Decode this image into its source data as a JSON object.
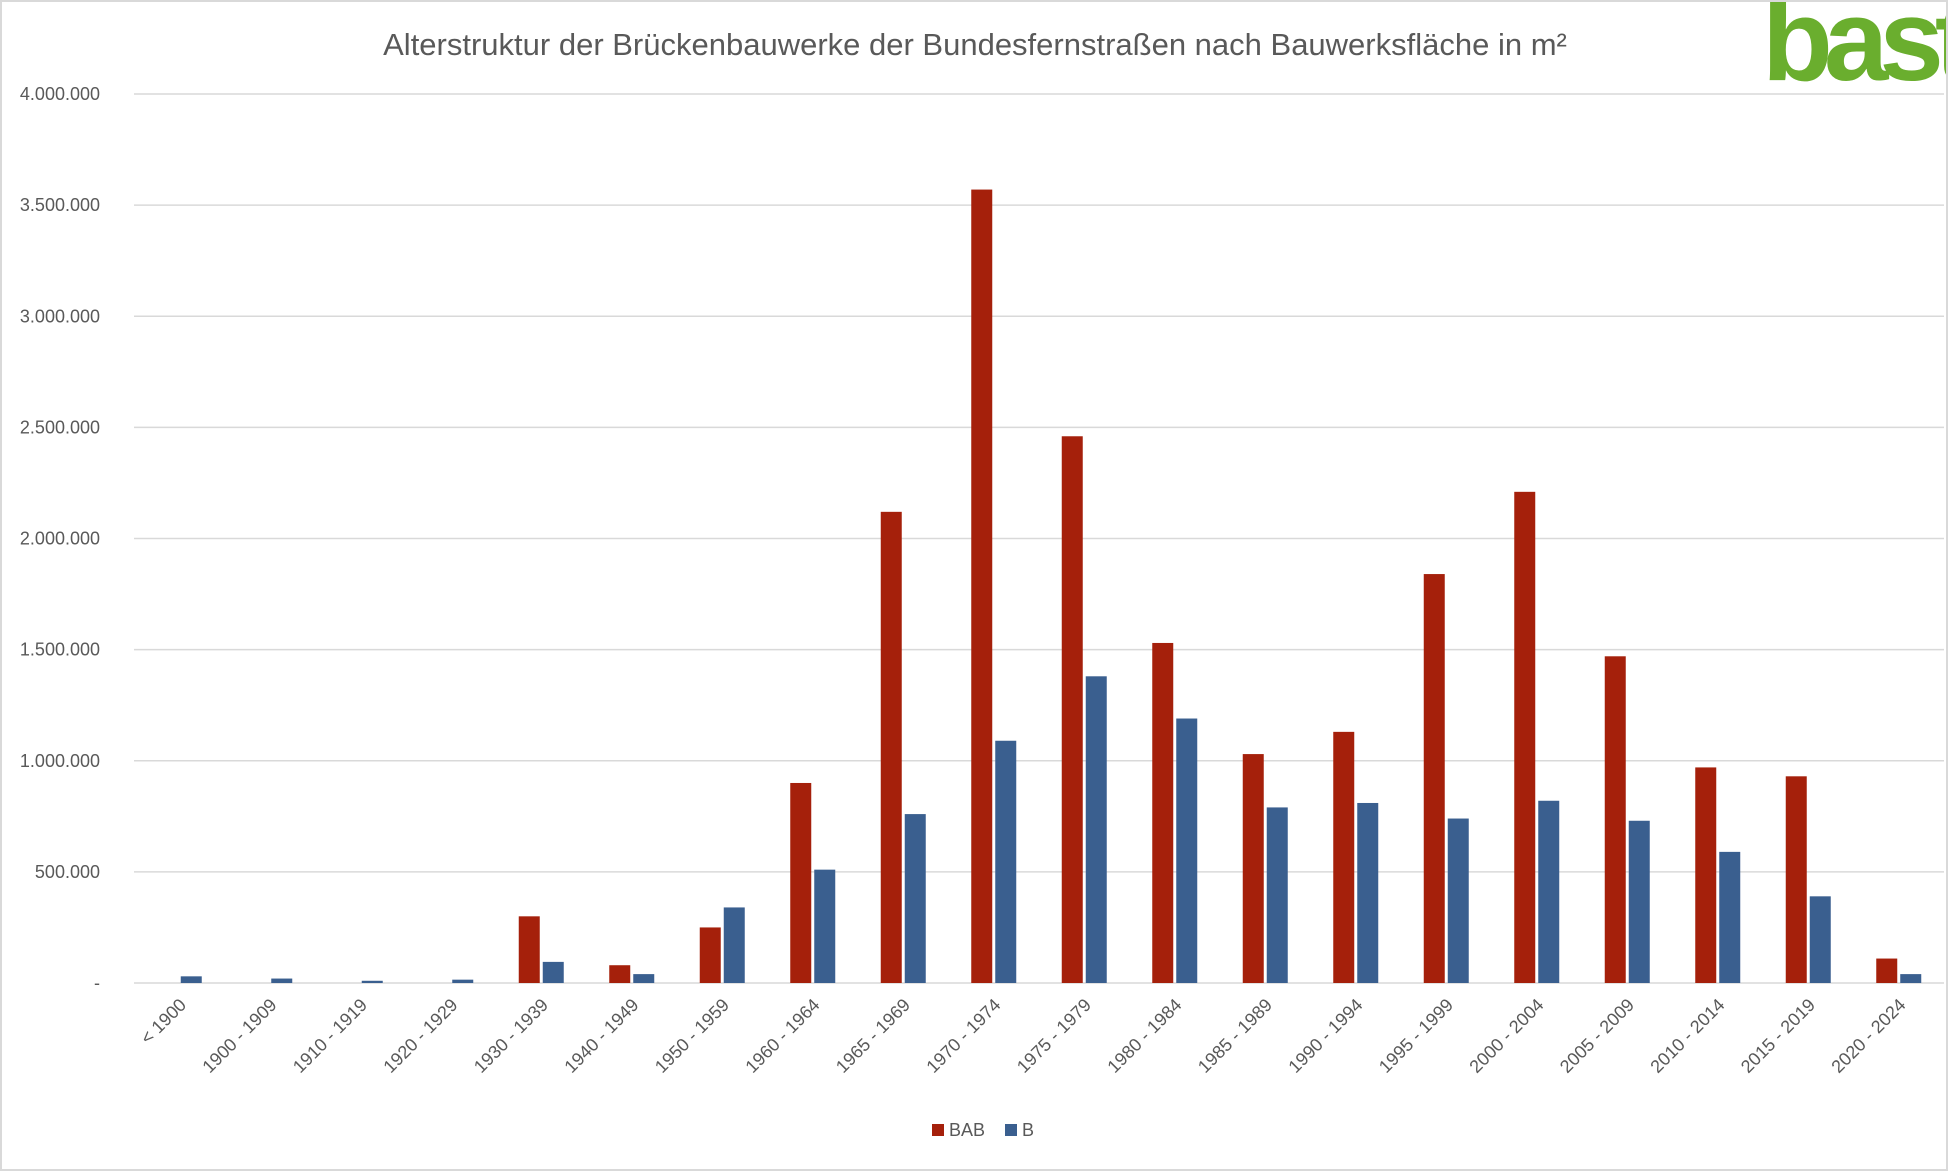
{
  "chart_data": {
    "type": "bar",
    "title": "Alterstruktur der Brückenbauwerke der Bundesfernstraßen nach Bauwerksfläche in m²",
    "xlabel": "",
    "ylabel": "",
    "ylim": [
      0,
      4000000
    ],
    "y_ticks": [
      0,
      500000,
      1000000,
      1500000,
      2000000,
      2500000,
      3000000,
      3500000,
      4000000
    ],
    "y_tick_labels": [
      "-",
      "500.000",
      "1.000.000",
      "1.500.000",
      "2.000.000",
      "2.500.000",
      "3.000.000",
      "3.500.000",
      "4.000.000"
    ],
    "grid": true,
    "legend_position": "bottom",
    "categories": [
      "< 1900",
      "1900 - 1909",
      "1910 - 1919",
      "1920 - 1929",
      "1930 - 1939",
      "1940 - 1949",
      "1950 - 1959",
      "1960 - 1964",
      "1965 - 1969",
      "1970 - 1974",
      "1975 - 1979",
      "1980 - 1984",
      "1985 - 1989",
      "1990 - 1994",
      "1995 - 1999",
      "2000 - 2004",
      "2005 - 2009",
      "2010 - 2014",
      "2015 - 2019",
      "2020 - 2024"
    ],
    "series": [
      {
        "name": "BAB",
        "color": "#A5200B",
        "values": [
          0,
          0,
          0,
          0,
          300000,
          80000,
          250000,
          900000,
          2120000,
          3570000,
          2460000,
          1530000,
          1030000,
          1130000,
          1840000,
          2210000,
          1470000,
          970000,
          930000,
          110000
        ]
      },
      {
        "name": "B",
        "color": "#3A5F8F",
        "values": [
          30000,
          20000,
          10000,
          15000,
          95000,
          40000,
          340000,
          510000,
          760000,
          1090000,
          1380000,
          1190000,
          790000,
          810000,
          740000,
          820000,
          730000,
          590000,
          390000,
          40000
        ]
      }
    ]
  },
  "logo": {
    "text": "bast",
    "color": "#6AAE2E"
  }
}
